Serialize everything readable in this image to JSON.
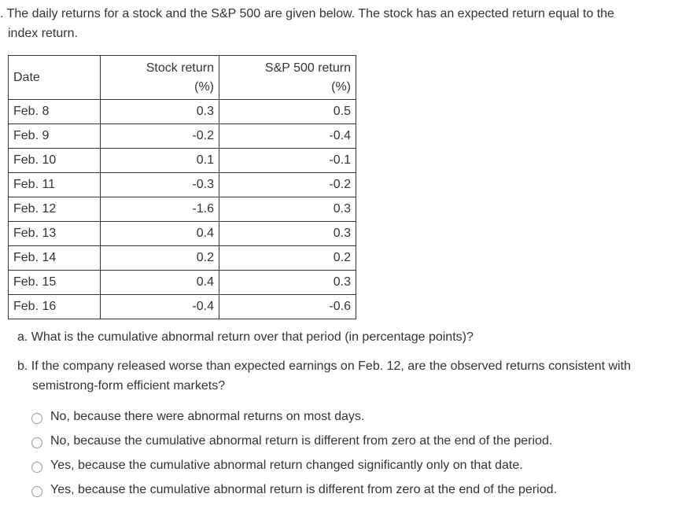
{
  "intro": {
    "line1": ". The daily returns for a stock and the S&P 500 are given below. The stock has an expected return equal to the",
    "line2": "index return."
  },
  "table": {
    "headers": {
      "date": "Date",
      "stock": "Stock return",
      "stock_unit": "(%)",
      "sp": "S&P 500 return",
      "sp_unit": "(%)"
    },
    "rows": [
      {
        "date": "Feb. 8",
        "stock": "0.3",
        "sp": "0.5"
      },
      {
        "date": "Feb. 9",
        "stock": "-0.2",
        "sp": "-0.4"
      },
      {
        "date": "Feb. 10",
        "stock": "0.1",
        "sp": "-0.1"
      },
      {
        "date": "Feb. 11",
        "stock": "-0.3",
        "sp": "-0.2"
      },
      {
        "date": "Feb. 12",
        "stock": "-1.6",
        "sp": "0.3"
      },
      {
        "date": "Feb. 13",
        "stock": "0.4",
        "sp": "0.3"
      },
      {
        "date": "Feb. 14",
        "stock": "0.2",
        "sp": "0.2"
      },
      {
        "date": "Feb. 15",
        "stock": "0.4",
        "sp": "0.3"
      },
      {
        "date": "Feb. 16",
        "stock": "-0.4",
        "sp": "-0.6"
      }
    ]
  },
  "questions": {
    "a": "a. What is the cumulative abnormal return over that period (in percentage points)?",
    "b_line1": "b. If the company released worse than expected earnings on Feb. 12, are the observed returns consistent with",
    "b_line2": "semistrong-form efficient markets?"
  },
  "options": [
    "No, because there were abnormal returns on most days.",
    "No, because the cumulative abnormal return is different from zero at the end of the period.",
    "Yes, because the cumulative abnormal return changed significantly only on that date.",
    "Yes, because the cumulative abnormal return is different from zero at the end of the period."
  ]
}
